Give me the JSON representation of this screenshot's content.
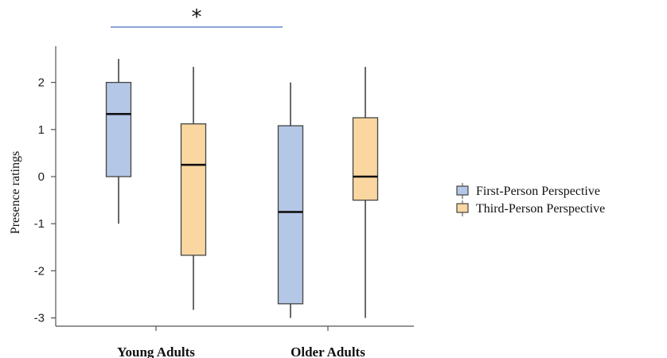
{
  "chart_data": {
    "type": "boxplot",
    "title": "",
    "xlabel": "",
    "ylabel": "Presence ratings",
    "ylim": [
      -3.1,
      2.75
    ],
    "yticks": [
      -3,
      -2,
      -1,
      0,
      1,
      2
    ],
    "categories": [
      "Young Adults",
      "Older Adults"
    ],
    "legend_position": "right",
    "series": [
      {
        "name": "First-Person Perspective",
        "color": "#b4c7e7",
        "boxes": [
          {
            "whisker_low": -1.0,
            "q1": 0.0,
            "median": 1.33,
            "q3": 2.0,
            "whisker_high": 2.5
          },
          {
            "whisker_low": -3.0,
            "q1": -2.7,
            "median": -0.75,
            "q3": 1.08,
            "whisker_high": 2.0
          }
        ]
      },
      {
        "name": "Third-Person Perspective",
        "color": "#fad7a0",
        "boxes": [
          {
            "whisker_low": -2.83,
            "q1": -1.67,
            "median": 0.25,
            "q3": 1.12,
            "whisker_high": 2.33
          },
          {
            "whisker_low": -3.0,
            "q1": -0.5,
            "median": 0.0,
            "q3": 1.25,
            "whisker_high": 2.33
          }
        ]
      }
    ],
    "significance": {
      "label": "*",
      "between": [
        "Young Adults · First-Person Perspective",
        "Older Adults · First-Person Perspective"
      ],
      "line_color": "#4472c4"
    }
  }
}
